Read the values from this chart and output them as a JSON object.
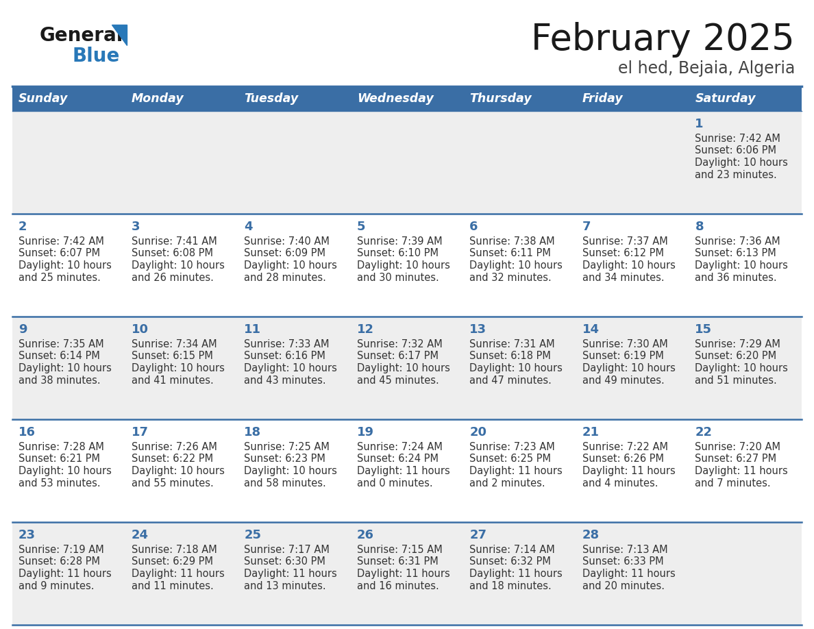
{
  "title": "February 2025",
  "subtitle": "el hed, Bejaia, Algeria",
  "header_bg_color": "#3a6ea5",
  "header_text_color": "#ffffff",
  "row0_bg": "#efefef",
  "row1_bg": "#ffffff",
  "row2_bg": "#efefef",
  "row3_bg": "#ffffff",
  "row4_bg": "#efefef",
  "border_color": "#3a6ea5",
  "days_of_week": [
    "Sunday",
    "Monday",
    "Tuesday",
    "Wednesday",
    "Thursday",
    "Friday",
    "Saturday"
  ],
  "title_color": "#1a1a1a",
  "subtitle_color": "#444444",
  "day_number_color": "#3a6ea5",
  "cell_text_color": "#333333",
  "calendar_data": [
    [
      null,
      null,
      null,
      null,
      null,
      null,
      {
        "day": "1",
        "sunrise": "7:42 AM",
        "sunset": "6:06 PM",
        "daylight_l1": "Daylight: 10 hours",
        "daylight_l2": "and 23 minutes."
      }
    ],
    [
      {
        "day": "2",
        "sunrise": "7:42 AM",
        "sunset": "6:07 PM",
        "daylight_l1": "Daylight: 10 hours",
        "daylight_l2": "and 25 minutes."
      },
      {
        "day": "3",
        "sunrise": "7:41 AM",
        "sunset": "6:08 PM",
        "daylight_l1": "Daylight: 10 hours",
        "daylight_l2": "and 26 minutes."
      },
      {
        "day": "4",
        "sunrise": "7:40 AM",
        "sunset": "6:09 PM",
        "daylight_l1": "Daylight: 10 hours",
        "daylight_l2": "and 28 minutes."
      },
      {
        "day": "5",
        "sunrise": "7:39 AM",
        "sunset": "6:10 PM",
        "daylight_l1": "Daylight: 10 hours",
        "daylight_l2": "and 30 minutes."
      },
      {
        "day": "6",
        "sunrise": "7:38 AM",
        "sunset": "6:11 PM",
        "daylight_l1": "Daylight: 10 hours",
        "daylight_l2": "and 32 minutes."
      },
      {
        "day": "7",
        "sunrise": "7:37 AM",
        "sunset": "6:12 PM",
        "daylight_l1": "Daylight: 10 hours",
        "daylight_l2": "and 34 minutes."
      },
      {
        "day": "8",
        "sunrise": "7:36 AM",
        "sunset": "6:13 PM",
        "daylight_l1": "Daylight: 10 hours",
        "daylight_l2": "and 36 minutes."
      }
    ],
    [
      {
        "day": "9",
        "sunrise": "7:35 AM",
        "sunset": "6:14 PM",
        "daylight_l1": "Daylight: 10 hours",
        "daylight_l2": "and 38 minutes."
      },
      {
        "day": "10",
        "sunrise": "7:34 AM",
        "sunset": "6:15 PM",
        "daylight_l1": "Daylight: 10 hours",
        "daylight_l2": "and 41 minutes."
      },
      {
        "day": "11",
        "sunrise": "7:33 AM",
        "sunset": "6:16 PM",
        "daylight_l1": "Daylight: 10 hours",
        "daylight_l2": "and 43 minutes."
      },
      {
        "day": "12",
        "sunrise": "7:32 AM",
        "sunset": "6:17 PM",
        "daylight_l1": "Daylight: 10 hours",
        "daylight_l2": "and 45 minutes."
      },
      {
        "day": "13",
        "sunrise": "7:31 AM",
        "sunset": "6:18 PM",
        "daylight_l1": "Daylight: 10 hours",
        "daylight_l2": "and 47 minutes."
      },
      {
        "day": "14",
        "sunrise": "7:30 AM",
        "sunset": "6:19 PM",
        "daylight_l1": "Daylight: 10 hours",
        "daylight_l2": "and 49 minutes."
      },
      {
        "day": "15",
        "sunrise": "7:29 AM",
        "sunset": "6:20 PM",
        "daylight_l1": "Daylight: 10 hours",
        "daylight_l2": "and 51 minutes."
      }
    ],
    [
      {
        "day": "16",
        "sunrise": "7:28 AM",
        "sunset": "6:21 PM",
        "daylight_l1": "Daylight: 10 hours",
        "daylight_l2": "and 53 minutes."
      },
      {
        "day": "17",
        "sunrise": "7:26 AM",
        "sunset": "6:22 PM",
        "daylight_l1": "Daylight: 10 hours",
        "daylight_l2": "and 55 minutes."
      },
      {
        "day": "18",
        "sunrise": "7:25 AM",
        "sunset": "6:23 PM",
        "daylight_l1": "Daylight: 10 hours",
        "daylight_l2": "and 58 minutes."
      },
      {
        "day": "19",
        "sunrise": "7:24 AM",
        "sunset": "6:24 PM",
        "daylight_l1": "Daylight: 11 hours",
        "daylight_l2": "and 0 minutes."
      },
      {
        "day": "20",
        "sunrise": "7:23 AM",
        "sunset": "6:25 PM",
        "daylight_l1": "Daylight: 11 hours",
        "daylight_l2": "and 2 minutes."
      },
      {
        "day": "21",
        "sunrise": "7:22 AM",
        "sunset": "6:26 PM",
        "daylight_l1": "Daylight: 11 hours",
        "daylight_l2": "and 4 minutes."
      },
      {
        "day": "22",
        "sunrise": "7:20 AM",
        "sunset": "6:27 PM",
        "daylight_l1": "Daylight: 11 hours",
        "daylight_l2": "and 7 minutes."
      }
    ],
    [
      {
        "day": "23",
        "sunrise": "7:19 AM",
        "sunset": "6:28 PM",
        "daylight_l1": "Daylight: 11 hours",
        "daylight_l2": "and 9 minutes."
      },
      {
        "day": "24",
        "sunrise": "7:18 AM",
        "sunset": "6:29 PM",
        "daylight_l1": "Daylight: 11 hours",
        "daylight_l2": "and 11 minutes."
      },
      {
        "day": "25",
        "sunrise": "7:17 AM",
        "sunset": "6:30 PM",
        "daylight_l1": "Daylight: 11 hours",
        "daylight_l2": "and 13 minutes."
      },
      {
        "day": "26",
        "sunrise": "7:15 AM",
        "sunset": "6:31 PM",
        "daylight_l1": "Daylight: 11 hours",
        "daylight_l2": "and 16 minutes."
      },
      {
        "day": "27",
        "sunrise": "7:14 AM",
        "sunset": "6:32 PM",
        "daylight_l1": "Daylight: 11 hours",
        "daylight_l2": "and 18 minutes."
      },
      {
        "day": "28",
        "sunrise": "7:13 AM",
        "sunset": "6:33 PM",
        "daylight_l1": "Daylight: 11 hours",
        "daylight_l2": "and 20 minutes."
      },
      null
    ]
  ],
  "row_bgs": [
    "#eeeeee",
    "#ffffff",
    "#eeeeee",
    "#ffffff",
    "#eeeeee"
  ]
}
